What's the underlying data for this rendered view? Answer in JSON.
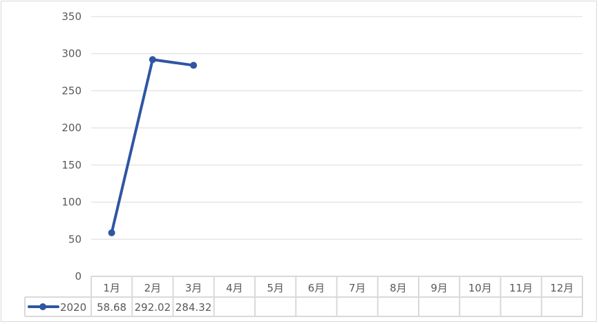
{
  "chart_data": {
    "type": "line",
    "categories": [
      "1月",
      "2月",
      "3月",
      "4月",
      "5月",
      "6月",
      "7月",
      "8月",
      "9月",
      "10月",
      "11月",
      "12月"
    ],
    "series": [
      {
        "name": "2020",
        "values": [
          58.68,
          292.02,
          284.32,
          null,
          null,
          null,
          null,
          null,
          null,
          null,
          null,
          null
        ],
        "labels": [
          "58.68",
          "292.02",
          "284.32",
          "",
          "",
          "",
          "",
          "",
          "",
          "",
          "",
          ""
        ]
      }
    ],
    "ylim": [
      0,
      350
    ],
    "yticks": [
      0,
      50,
      100,
      150,
      200,
      250,
      300,
      350
    ],
    "grid": true,
    "data_table": true,
    "colors": {
      "series": "#2F55A3",
      "grid": "#d9d9d9",
      "text": "#595959"
    }
  }
}
